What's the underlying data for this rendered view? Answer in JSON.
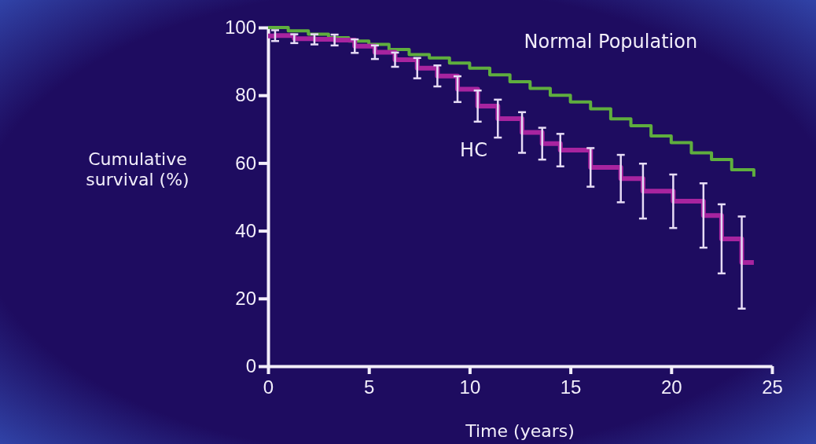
{
  "chart_data": {
    "type": "step",
    "xlabel": "Time (years)",
    "ylabel": "Cumulative survival (%)",
    "xlim": [
      0,
      25
    ],
    "xticks": [
      0,
      5,
      10,
      15,
      20,
      25
    ],
    "ylim": [
      0,
      100
    ],
    "yticks": [
      0,
      20,
      40,
      60,
      80,
      100
    ],
    "grid": false,
    "series": [
      {
        "name": "Normal Population",
        "color": "#5fae3e",
        "x": [
          0,
          1,
          2,
          3,
          4,
          5,
          6,
          7,
          8,
          9,
          10,
          11,
          12,
          13,
          14,
          15,
          16,
          17,
          18,
          19,
          20,
          21,
          22,
          23,
          24.1
        ],
        "values": [
          100,
          99,
          98,
          97,
          96,
          95,
          93.5,
          92,
          91,
          89.5,
          88,
          86,
          84,
          82,
          80,
          78,
          76,
          73,
          71,
          68,
          66,
          63,
          61,
          58,
          56
        ]
      },
      {
        "name": "HC",
        "color": "#a8249f",
        "x": [
          0,
          0.35,
          1.3,
          2.3,
          3.3,
          4.3,
          5.3,
          6.3,
          7.4,
          8.4,
          9.4,
          10.4,
          11.4,
          12.6,
          13.6,
          14.5,
          16,
          17.5,
          18.6,
          20.1,
          21.6,
          22.5,
          23.5,
          24.1
        ],
        "values": [
          97.5,
          97.6,
          96.7,
          96.5,
          96.3,
          94.5,
          92.7,
          90.5,
          88,
          85.7,
          81.8,
          76.8,
          73.1,
          69,
          65.7,
          63.8,
          58.7,
          55.4,
          51.7,
          48.7,
          44.5,
          37.6,
          30.6,
          30.6
        ],
        "errors": [
          null,
          1.6,
          1.3,
          1.5,
          1.6,
          2,
          2,
          2.1,
          3,
          3.1,
          3.8,
          4.6,
          5.6,
          6,
          4.7,
          4.8,
          5.7,
          7,
          8.1,
          7.9,
          9.5,
          10.2,
          13.6,
          null
        ]
      }
    ]
  }
}
